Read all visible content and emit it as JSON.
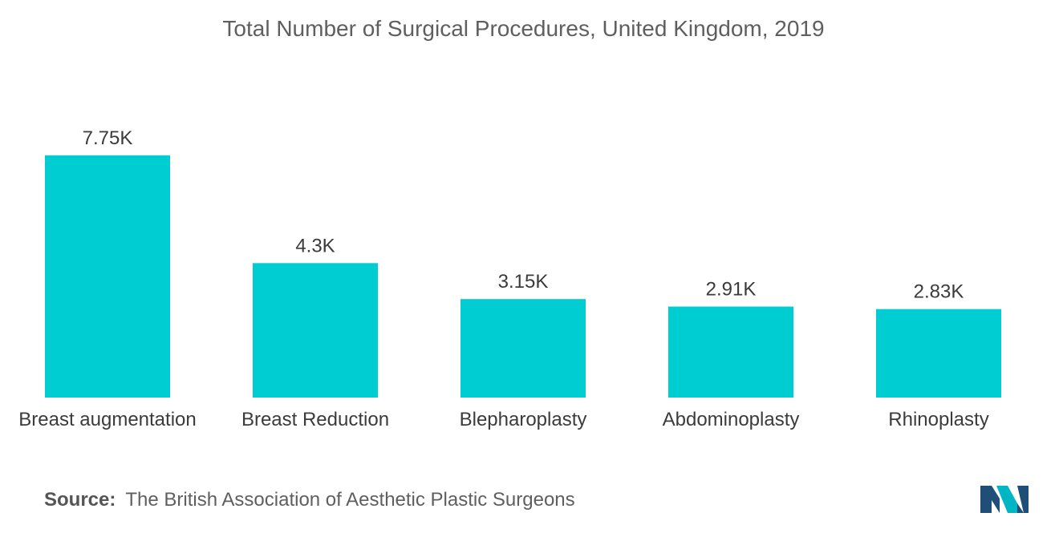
{
  "chart_data": {
    "type": "bar",
    "title": "Total Number of Surgical Procedures, United Kingdom, 2019",
    "categories": [
      "Breast augmentation",
      "Breast Reduction",
      "Blepharoplasty",
      "Abdominoplasty",
      "Rhinoplasty"
    ],
    "values": [
      7750,
      4300,
      3150,
      2910,
      2830
    ],
    "value_labels": [
      "7.75K",
      "4.3K",
      "3.15K",
      "2.91K",
      "2.83K"
    ],
    "ylim": [
      0,
      8000
    ],
    "grid": false,
    "legend": "none",
    "bar_color": "#00cdd1"
  },
  "source": {
    "label": "Source:",
    "text": "The British Association of Aesthetic Plastic Surgeons"
  },
  "logo": {
    "icon": "mordor-intelligence-logo-icon",
    "colors": [
      "#1f4e79",
      "#00b5c4"
    ]
  }
}
